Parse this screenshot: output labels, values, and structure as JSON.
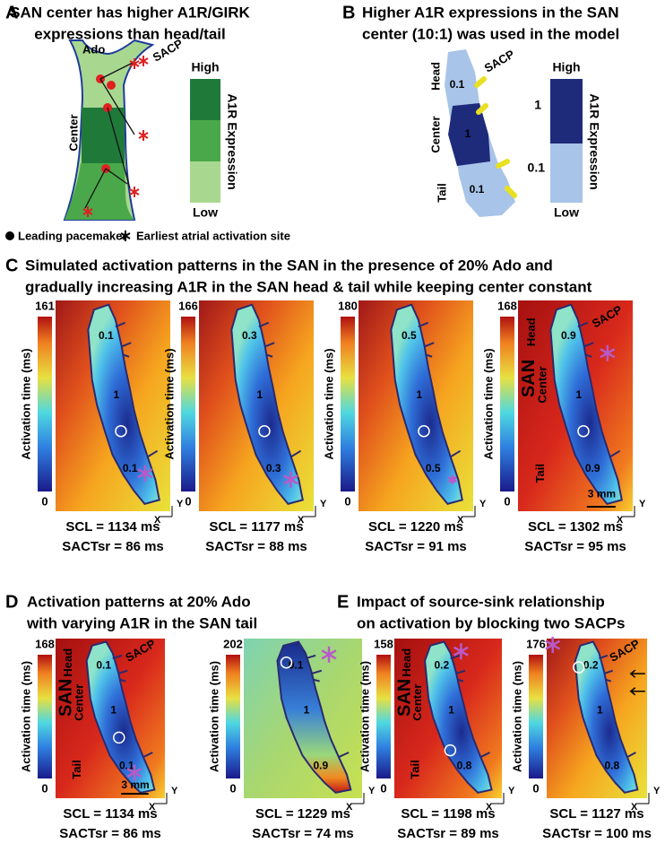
{
  "panel_a": {
    "letter": "A",
    "title": [
      "SAN center has higher A1R/GIRK",
      "expressions than head/tail"
    ],
    "ado": "Ado",
    "sacp": "SACP",
    "center": "Center",
    "legend_high": "High",
    "legend_low": "Low",
    "legend_label": "A1R Expression",
    "key": [
      "Leading pacemaker",
      "Earliest atrial activation site"
    ]
  },
  "panel_b": {
    "letter": "B",
    "title": [
      "Higher A1R expressions in the SAN",
      "center (10:1) was used in the model"
    ],
    "head": "Head",
    "center": "Center",
    "tail": "Tail",
    "sacp": "SACP",
    "values": [
      0.1,
      1,
      0.1
    ],
    "legend_high": "High",
    "legend_low": "Low",
    "legend_ticks": [
      1,
      0.1
    ],
    "legend_label": "A1R Expression"
  },
  "panel_c": {
    "letter": "C",
    "title": [
      "Simulated activation patterns in the SAN in the presence of 20% Ado and",
      "gradually increasing A1R in the SAN head & tail while keeping center constant"
    ],
    "maps": [
      {
        "max": 161,
        "min": 0,
        "axis_label": "Activation time (ms)",
        "values": [
          0.1,
          1,
          0.1
        ],
        "scl": "SCL = 1134 ms",
        "sact": "SACTsr = 86 ms",
        "y": "Y",
        "x": "X"
      },
      {
        "max": 166,
        "min": 0,
        "axis_label": "Activation time (ms)",
        "values": [
          0.3,
          1,
          0.3
        ],
        "scl": "SCL = 1177 ms",
        "sact": "SACTsr = 88 ms",
        "y": "Y",
        "x": "X"
      },
      {
        "max": 180,
        "min": 0,
        "axis_label": "Activation time (ms)",
        "values": [
          0.5,
          1,
          0.5
        ],
        "scl": "SCL = 1220 ms",
        "sact": "SACTsr = 91 ms",
        "y": "Y",
        "x": "X"
      },
      {
        "max": 168,
        "min": 0,
        "axis_label": "Activation time (ms)",
        "values": [
          0.9,
          1,
          0.9
        ],
        "scl": "SCL = 1302 ms",
        "sact": "SACTsr = 95 ms",
        "y": "Y",
        "x": "X",
        "labels": {
          "head": "Head",
          "san": "SAN",
          "center": "Center",
          "tail": "Tail",
          "sacp": "SACP",
          "scale": "3 mm"
        }
      }
    ]
  },
  "panel_d": {
    "letter": "D",
    "title": [
      "Activation patterns at 20% Ado",
      "with varying A1R in the SAN tail"
    ],
    "maps": [
      {
        "max": 168,
        "min": 0,
        "axis_label": "Activation time (ms)",
        "values": [
          0.1,
          1,
          0.1
        ],
        "scl": "SCL = 1134 ms",
        "sact": "SACTsr = 86 ms",
        "y": "Y",
        "x": "X",
        "labels": {
          "head": "Head",
          "san": "SAN",
          "center": "Center",
          "tail": "Tail",
          "sacp": "SACP",
          "scale": "3 mm"
        }
      },
      {
        "max": 202,
        "min": 0,
        "axis_label": "Activation time (ms)",
        "values": [
          0.1,
          1,
          0.9
        ],
        "scl": "SCL = 1229 ms",
        "sact": "SACTsr = 74 ms",
        "y": "Y",
        "x": "X"
      }
    ]
  },
  "panel_e": {
    "letter": "E",
    "title": [
      "Impact of source-sink relationship",
      "on activation by blocking two SACPs"
    ],
    "maps": [
      {
        "max": 158,
        "min": 0,
        "axis_label": "Activation time (ms)",
        "values": [
          0.2,
          1,
          0.8
        ],
        "scl": "SCL = 1198 ms",
        "sact": "SACTsr = 89 ms",
        "y": "Y",
        "x": "X",
        "labels": {
          "head": "Head",
          "san": "SAN",
          "center": "Center",
          "tail": "Tail"
        }
      },
      {
        "max": 176,
        "min": 0,
        "axis_label": "Activation time (ms)",
        "values": [
          0.2,
          1,
          0.8
        ],
        "scl": "SCL = 1127 ms",
        "sact": "SACTsr = 100 ms",
        "y": "Y",
        "x": "X",
        "labels": {
          "sacp": "SACP"
        }
      }
    ]
  }
}
